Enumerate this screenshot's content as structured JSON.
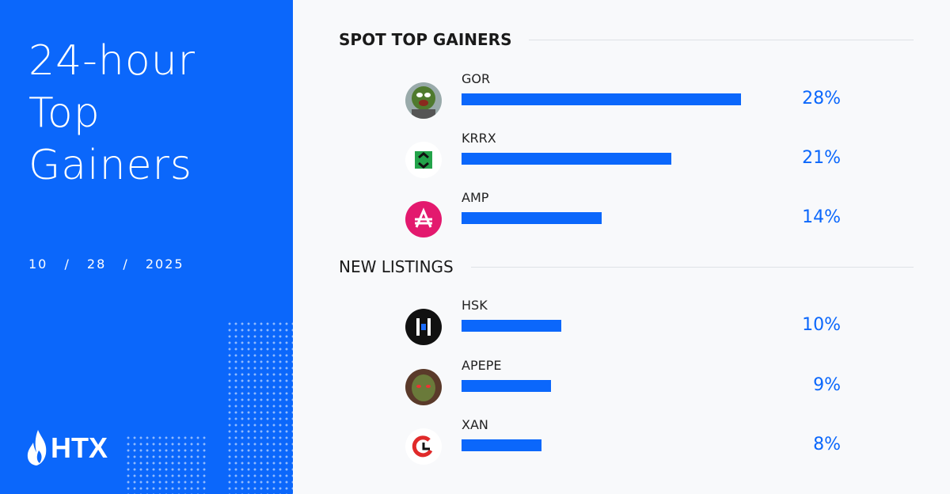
{
  "left": {
    "title_lines": [
      "24-hour",
      "Top",
      "Gainers"
    ],
    "date": "10 / 28 / 2025",
    "brand": "HTX",
    "brand_color": "#0b67fb"
  },
  "chart_data": [
    {
      "type": "bar",
      "title": "SPOT TOP GAINERS",
      "categories": [
        "GOR",
        "KRRX",
        "AMP"
      ],
      "values": [
        28,
        21,
        14
      ],
      "labels": [
        "28%",
        "21%",
        "14%"
      ],
      "unit": "%",
      "orientation": "horizontal",
      "color": "#0b67fb"
    },
    {
      "type": "bar",
      "title": "NEW LISTINGS",
      "categories": [
        "HSK",
        "APEPE",
        "XAN"
      ],
      "values": [
        10,
        9,
        8
      ],
      "labels": [
        "10%",
        "9%",
        "8%"
      ],
      "unit": "%",
      "orientation": "horizontal",
      "color": "#0b67fb"
    }
  ],
  "icons": [
    "oscar-grouch-avatar",
    "krrx-arrows-icon",
    "amp-logo-icon",
    "hsk-logo-icon",
    "apepe-frog-avatar",
    "xan-logo-icon"
  ]
}
